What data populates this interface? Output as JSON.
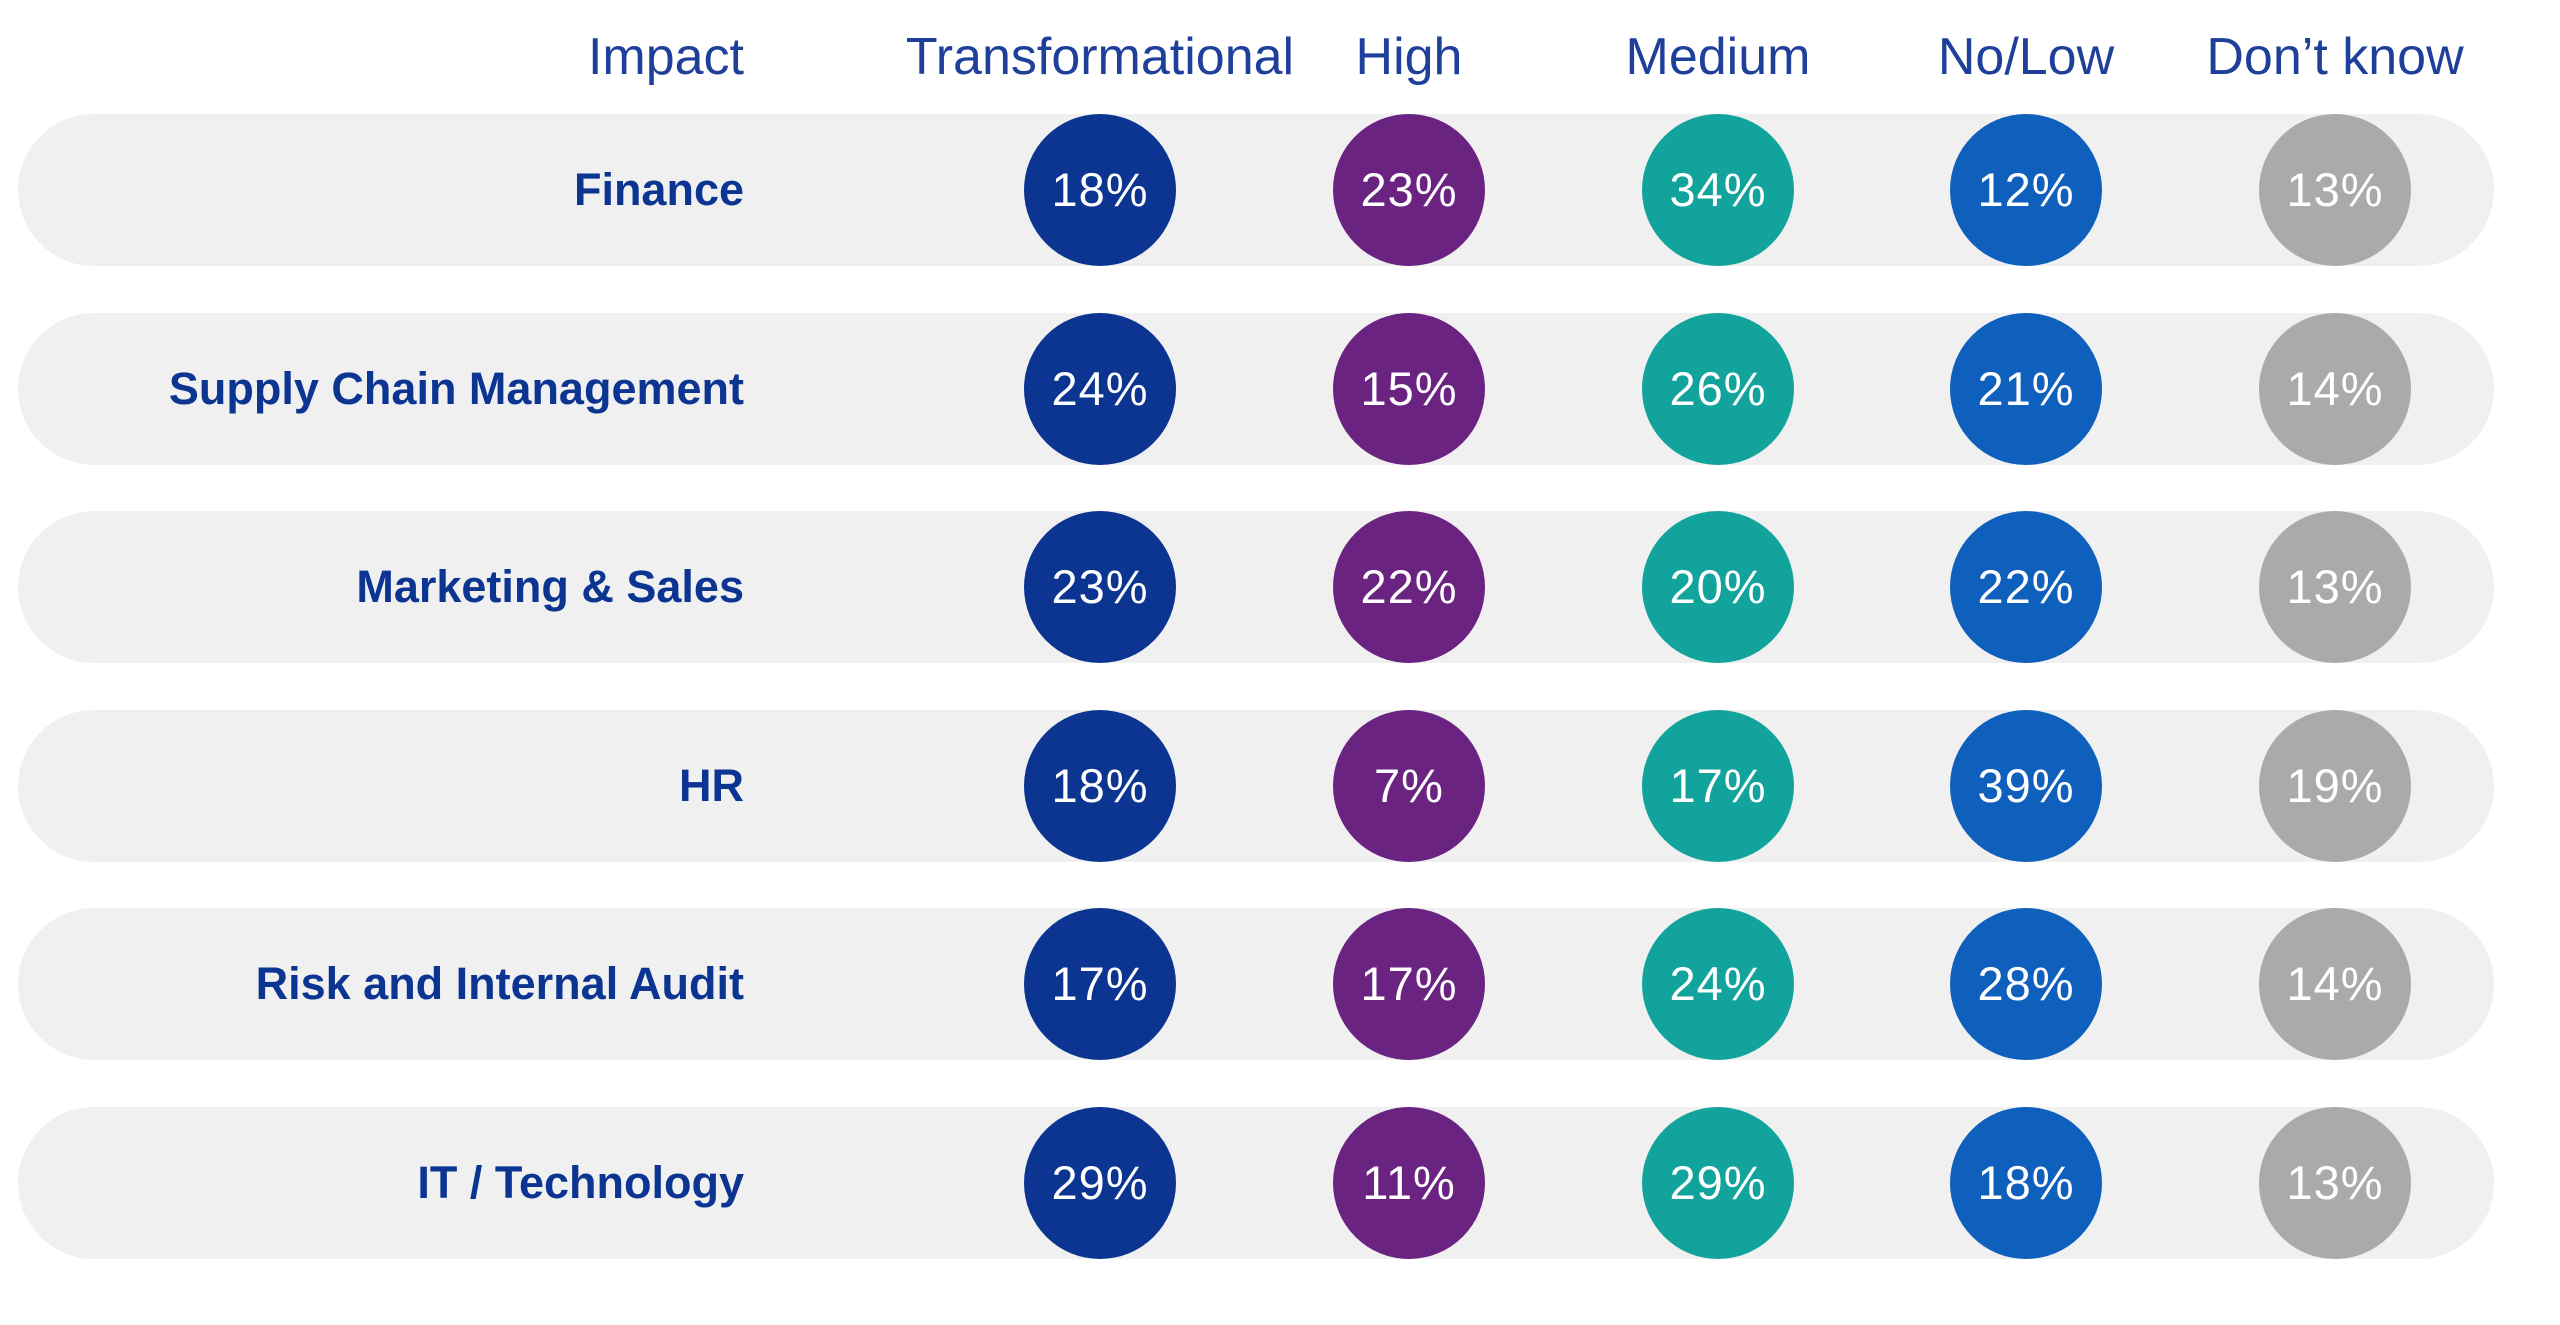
{
  "chart_data": {
    "type": "table",
    "row_header": "Impact",
    "columns": [
      "Transformational",
      "High",
      "Medium",
      "No/Low",
      "Don’t know"
    ],
    "column_colors": [
      "#0b3591",
      "#6a2380",
      "#12a49c",
      "#0f5fbd",
      "#aba9a9"
    ],
    "rows": [
      {
        "label": "Finance",
        "values": [
          18,
          23,
          34,
          12,
          13
        ],
        "value_labels": [
          "18%",
          "23%",
          "34%",
          "12%",
          "13%"
        ]
      },
      {
        "label": "Supply Chain Management",
        "values": [
          24,
          15,
          26,
          21,
          14
        ],
        "value_labels": [
          "24%",
          "15%",
          "26%",
          "21%",
          "14%"
        ]
      },
      {
        "label": "Marketing & Sales",
        "values": [
          23,
          22,
          20,
          22,
          13
        ],
        "value_labels": [
          "23%",
          "22%",
          "20%",
          "22%",
          "13%"
        ]
      },
      {
        "label": "HR",
        "values": [
          18,
          7,
          17,
          39,
          19
        ],
        "value_labels": [
          "18%",
          "7%",
          "17%",
          "39%",
          "19%"
        ]
      },
      {
        "label": "Risk and Internal Audit",
        "values": [
          17,
          17,
          24,
          28,
          14
        ],
        "value_labels": [
          "17%",
          "17%",
          "24%",
          "28%",
          "14%"
        ]
      },
      {
        "label": "IT / Technology",
        "values": [
          29,
          11,
          29,
          18,
          13
        ],
        "value_labels": [
          "29%",
          "11%",
          "29%",
          "18%",
          "13%"
        ]
      }
    ]
  }
}
